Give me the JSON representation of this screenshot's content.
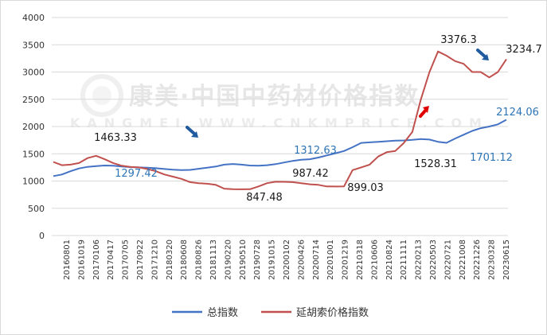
{
  "chart_data": {
    "type": "line",
    "ylim": [
      0,
      4000
    ],
    "yticks": [
      0,
      500,
      1000,
      1500,
      2000,
      2500,
      3000,
      3500,
      4000
    ],
    "xticks": [
      "20160801",
      "20161019",
      "20170106",
      "20170417",
      "20170705",
      "20170922",
      "20171210",
      "20180320",
      "20180608",
      "20180826",
      "20181113",
      "20190220",
      "20190510",
      "20190728",
      "20191015",
      "20200102",
      "20200426",
      "20200714",
      "20201001",
      "20201219",
      "20210318",
      "20210606",
      "20210824",
      "20211111",
      "20220213",
      "20220503",
      "20220721",
      "20221008",
      "20221226",
      "20230328",
      "20230615"
    ],
    "grid": true,
    "legend_position": "bottom",
    "series": [
      {
        "name": "总指数",
        "color": "#4472c4",
        "points": [
          [
            0,
            1090
          ],
          [
            1,
            1120
          ],
          [
            2,
            1180
          ],
          [
            3,
            1230
          ],
          [
            4,
            1260
          ],
          [
            5,
            1275
          ],
          [
            6,
            1285
          ],
          [
            7,
            1280
          ],
          [
            8,
            1265
          ],
          [
            9,
            1255
          ],
          [
            10,
            1250
          ],
          [
            11,
            1245
          ],
          [
            12,
            1235
          ],
          [
            13,
            1220
          ],
          [
            14,
            1208
          ],
          [
            15,
            1200
          ],
          [
            16,
            1205
          ],
          [
            17,
            1225
          ],
          [
            18,
            1245
          ],
          [
            19,
            1265
          ],
          [
            20,
            1300
          ],
          [
            21,
            1312.63
          ],
          [
            22,
            1300
          ],
          [
            23,
            1285
          ],
          [
            24,
            1280
          ],
          [
            25,
            1290
          ],
          [
            26,
            1310
          ],
          [
            27,
            1340
          ],
          [
            28,
            1370
          ],
          [
            29,
            1390
          ],
          [
            30,
            1400
          ],
          [
            31,
            1430
          ],
          [
            32,
            1470
          ],
          [
            33,
            1510
          ],
          [
            34,
            1550
          ],
          [
            35,
            1620
          ],
          [
            36,
            1700
          ],
          [
            37,
            1710
          ],
          [
            38,
            1720
          ],
          [
            39,
            1730
          ],
          [
            40,
            1740
          ],
          [
            41,
            1745
          ],
          [
            42,
            1755
          ],
          [
            43,
            1770
          ],
          [
            44,
            1760
          ],
          [
            45,
            1720
          ],
          [
            46,
            1701.12
          ],
          [
            47,
            1780
          ],
          [
            48,
            1850
          ],
          [
            49,
            1920
          ],
          [
            50,
            1970
          ],
          [
            51,
            2000
          ],
          [
            52,
            2040
          ],
          [
            53,
            2124.06
          ]
        ]
      },
      {
        "name": "延胡索价格指数",
        "color": "#c0504d",
        "points": [
          [
            0,
            1350
          ],
          [
            1,
            1290
          ],
          [
            2,
            1300
          ],
          [
            3,
            1330
          ],
          [
            4,
            1420
          ],
          [
            5,
            1463.33
          ],
          [
            6,
            1400
          ],
          [
            7,
            1330
          ],
          [
            8,
            1280
          ],
          [
            9,
            1260
          ],
          [
            10,
            1250
          ],
          [
            11,
            1220
          ],
          [
            12,
            1180
          ],
          [
            13,
            1120
          ],
          [
            14,
            1080
          ],
          [
            15,
            1040
          ],
          [
            16,
            980
          ],
          [
            17,
            960
          ],
          [
            18,
            950
          ],
          [
            19,
            930
          ],
          [
            20,
            860
          ],
          [
            21,
            850
          ],
          [
            22,
            847.48
          ],
          [
            23,
            850
          ],
          [
            24,
            900
          ],
          [
            25,
            960
          ],
          [
            26,
            987.42
          ],
          [
            27,
            985
          ],
          [
            28,
            980
          ],
          [
            29,
            960
          ],
          [
            30,
            940
          ],
          [
            31,
            930
          ],
          [
            32,
            900
          ],
          [
            33,
            899.03
          ],
          [
            34,
            900
          ],
          [
            35,
            1200
          ],
          [
            36,
            1250
          ],
          [
            37,
            1300
          ],
          [
            38,
            1450
          ],
          [
            39,
            1528.31
          ],
          [
            40,
            1550
          ],
          [
            41,
            1700
          ],
          [
            42,
            1900
          ],
          [
            43,
            2500
          ],
          [
            44,
            3000
          ],
          [
            45,
            3376.3
          ],
          [
            46,
            3300
          ],
          [
            47,
            3200
          ],
          [
            48,
            3150
          ],
          [
            49,
            3000
          ],
          [
            50,
            3000
          ],
          [
            51,
            2900
          ],
          [
            52,
            3000
          ],
          [
            53,
            3234.7
          ]
        ]
      }
    ],
    "annotations": [
      {
        "text": "1463.33",
        "color": "#1a1a1a"
      },
      {
        "text": "1297.42",
        "color": "#2e75b6"
      },
      {
        "text": "847.48",
        "color": "#1a1a1a"
      },
      {
        "text": "1312.63",
        "color": "#2e75b6"
      },
      {
        "text": "987.42",
        "color": "#1a1a1a"
      },
      {
        "text": "899.03",
        "color": "#1a1a1a"
      },
      {
        "text": "1528.31",
        "color": "#1a1a1a"
      },
      {
        "text": "3376.3",
        "color": "#1a1a1a"
      },
      {
        "text": "3234.7",
        "color": "#1a1a1a"
      },
      {
        "text": "1701.12",
        "color": "#2e75b6"
      },
      {
        "text": "2124.06",
        "color": "#2e75b6"
      }
    ],
    "watermark": {
      "line1": "康美·中国中药材价格指数",
      "line2": "KANGMEI WWW.CNKMPRICE.COM"
    },
    "arrows": [
      {
        "color": "#1f5b9e",
        "direction": "down-right"
      },
      {
        "color": "#e00000",
        "direction": "up-right"
      },
      {
        "color": "#1f5b9e",
        "direction": "down-right"
      }
    ]
  }
}
